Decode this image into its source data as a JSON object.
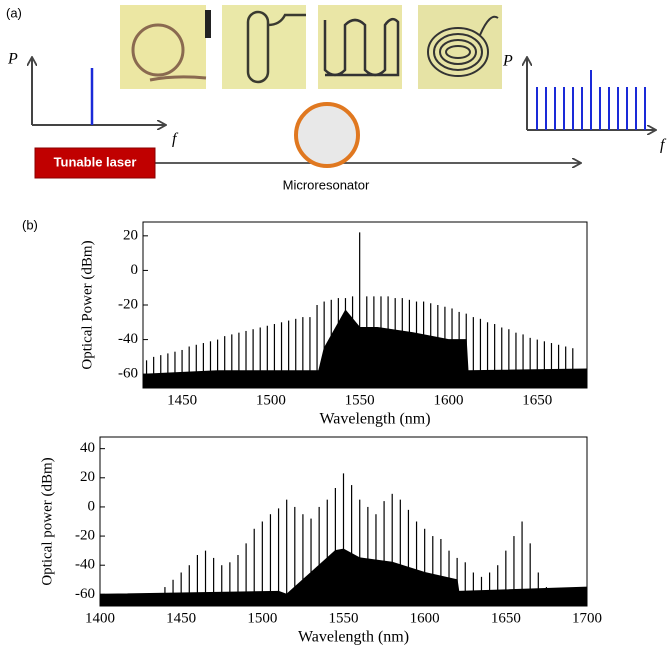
{
  "panel_labels": [
    "(a)",
    "(b)"
  ],
  "diagram": {
    "axis_labels": [
      "P",
      "f",
      "P",
      "f"
    ],
    "laser": "Tunable laser",
    "resonator": "Microresonator"
  },
  "chart_data": [
    {
      "type": "stem",
      "ylabel": "Optical Power (dBm)",
      "xlabel": "Wavelength (nm)",
      "xlim": [
        1428,
        1678
      ],
      "xticks": [
        1450,
        1500,
        1550,
        1600,
        1650
      ],
      "ylim": [
        -68,
        28
      ],
      "yticks": [
        -60,
        -40,
        -20,
        0,
        20
      ],
      "color": "#000000",
      "x": [
        1430,
        1434,
        1438,
        1442,
        1446,
        1450,
        1454,
        1458,
        1462,
        1466,
        1470,
        1474,
        1478,
        1482,
        1486,
        1490,
        1494,
        1498,
        1502,
        1506,
        1510,
        1514,
        1518,
        1522,
        1526,
        1530,
        1534,
        1538,
        1542,
        1546,
        1550,
        1554,
        1558,
        1562,
        1566,
        1570,
        1574,
        1578,
        1582,
        1586,
        1590,
        1594,
        1598,
        1602,
        1606,
        1610,
        1614,
        1618,
        1622,
        1626,
        1630,
        1634,
        1638,
        1642,
        1646,
        1650,
        1654,
        1658,
        1662,
        1666,
        1670
      ],
      "values": [
        -52,
        -50,
        -49,
        -48,
        -47,
        -46,
        -44,
        -43,
        -42,
        -41,
        -40,
        -38,
        -37,
        -36,
        -35,
        -34,
        -33,
        -32,
        -31,
        -30,
        -29,
        -28,
        -27,
        -27,
        -20,
        -18,
        -17,
        -16,
        -16,
        -15,
        22,
        -15,
        -15,
        -15,
        -15,
        -16,
        -16,
        -17,
        -18,
        -18,
        -19,
        -20,
        -21,
        -22,
        -24,
        -25,
        -27,
        -28,
        -30,
        -31,
        -33,
        -34,
        -36,
        -37,
        -39,
        -40,
        -41,
        -42,
        -43,
        -44,
        -45
      ],
      "floor": {
        "x": [
          1428,
          1470,
          1527,
          1530,
          1542,
          1550,
          1560,
          1580,
          1600,
          1610,
          1611,
          1678
        ],
        "values": [
          -60,
          -58,
          -58,
          -45,
          -23,
          -33,
          -33,
          -36,
          -40,
          -40,
          -58,
          -57
        ]
      }
    },
    {
      "type": "stem",
      "ylabel": "Optical power (dBm)",
      "xlabel": "Wavelength (nm)",
      "xlim": [
        1400,
        1700
      ],
      "xticks": [
        1400,
        1450,
        1500,
        1550,
        1600,
        1650,
        1700
      ],
      "ylim": [
        -68,
        48
      ],
      "yticks": [
        -60,
        -40,
        -20,
        0,
        20,
        40
      ],
      "color": "#000000",
      "x": [
        1440,
        1445,
        1450,
        1455,
        1460,
        1465,
        1470,
        1475,
        1480,
        1485,
        1490,
        1495,
        1500,
        1505,
        1510,
        1515,
        1520,
        1525,
        1530,
        1535,
        1540,
        1545,
        1550,
        1555,
        1560,
        1565,
        1570,
        1575,
        1580,
        1585,
        1590,
        1595,
        1600,
        1605,
        1610,
        1615,
        1620,
        1625,
        1630,
        1635,
        1640,
        1645,
        1650,
        1655,
        1660,
        1665,
        1670,
        1675
      ],
      "values": [
        -55,
        -50,
        -45,
        -40,
        -33,
        -30,
        -35,
        -40,
        -38,
        -33,
        -25,
        -15,
        -10,
        -5,
        -1,
        5,
        0,
        -5,
        -8,
        0,
        5,
        13,
        23,
        15,
        5,
        0,
        -5,
        4,
        9,
        5,
        -2,
        -10,
        -15,
        -20,
        -22,
        -30,
        -35,
        -38,
        -45,
        -48,
        -45,
        -40,
        -30,
        -20,
        -10,
        -25,
        -45,
        -55
      ],
      "floor": {
        "x": [
          1400,
          1510,
          1515,
          1530,
          1545,
          1550,
          1560,
          1580,
          1600,
          1620,
          1621,
          1700
        ],
        "values": [
          -60,
          -58,
          -60,
          -45,
          -30,
          -29,
          -35,
          -38,
          -45,
          -50,
          -58,
          -55
        ]
      }
    }
  ]
}
